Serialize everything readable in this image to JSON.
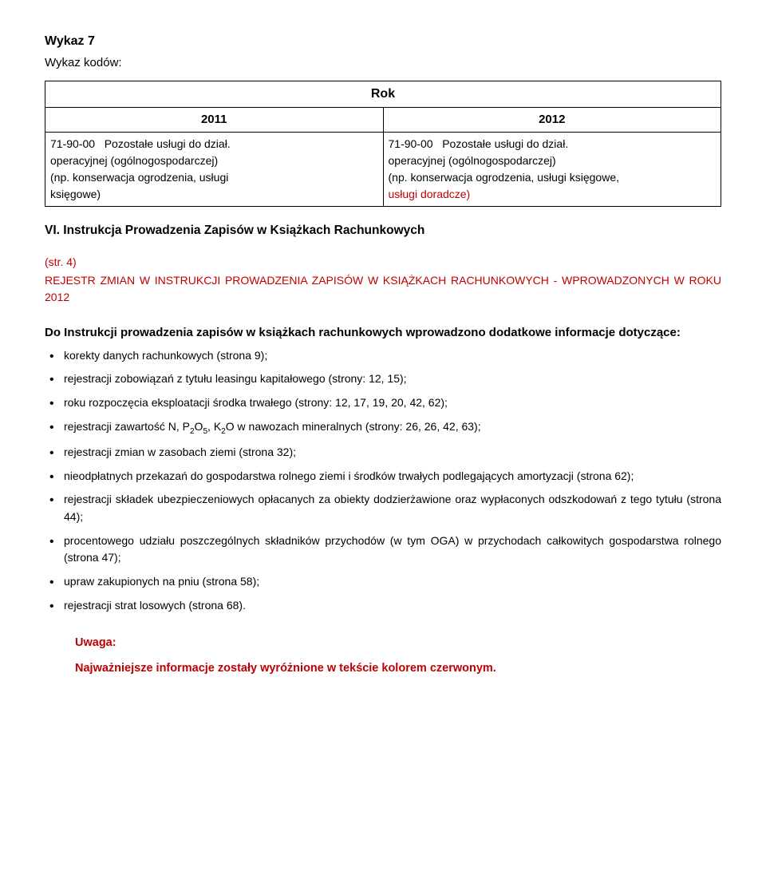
{
  "heading": "Wykaz 7",
  "subheading": "Wykaz kodów:",
  "table": {
    "rok_label": "Rok",
    "year_left": "2011",
    "year_right": "2012",
    "left_code": "71-90-00",
    "left_text1": "Pozostałe usługi do dział.",
    "left_text2": "operacyjnej (ogólnogospodarczej)",
    "left_text3": "(np. konserwacja ogrodzenia, usługi",
    "left_text4": "księgowe)",
    "right_code": "71-90-00",
    "right_text1": "Pozostałe usługi do dział.",
    "right_text2": "operacyjnej (ogólnogospodarczej)",
    "right_text3": "(np. konserwacja ogrodzenia, usługi księgowe,",
    "right_text4": "usługi doradcze)"
  },
  "section_vi": "VI.  Instrukcja Prowadzenia Zapisów w Książkach Rachunkowych",
  "str4": "(str. 4)",
  "registry_title": "REJESTR ZMIAN W INSTRUKCJI PROWADZENIA ZAPISÓW W KSIĄŻKACH RACHUNKOWYCH - WPROWADZONYCH W ROKU 2012",
  "intro_bold": "Do Instrukcji prowadzenia zapisów w książkach rachunkowych wprowadzono dodatkowe informacje dotyczące:",
  "bullets": {
    "b0": "korekty danych rachunkowych (strona 9);",
    "b1": "rejestracji zobowiązań z tytułu leasingu kapitałowego (strony: 12, 15);",
    "b2": "roku rozpoczęcia eksploatacji środka trwałego (strony: 12, 17, 19, 20, 42, 62);",
    "b3_pre": "rejestracji zawartość N, P",
    "b3_sub1": "2",
    "b3_mid1": "O",
    "b3_sub2": "5",
    "b3_mid2": ", K",
    "b3_sub3": "2",
    "b3_post": "O w nawozach mineralnych (strony: 26, 26, 42, 63);",
    "b4": "rejestracji zmian w zasobach ziemi (strona 32);",
    "b5": "nieodpłatnych przekazań do gospodarstwa rolnego ziemi i środków trwałych podlegających amortyzacji (strona 62);",
    "b6": "rejestracji składek ubezpieczeniowych opłacanych za obiekty dodzierżawione oraz wypłaconych odszkodowań z tego tytułu (strona 44);",
    "b7": "procentowego udziału poszczególnych składników przychodów (w tym OGA) w przychodach całkowitych gospodarstwa rolnego (strona 47);",
    "b8": "upraw zakupionych na pniu (strona 58);",
    "b9": "rejestracji strat losowych (strona 68)."
  },
  "uwaga": {
    "label": "Uwaga:",
    "text": "Najważniejsze informacje zostały wyróżnione w tekście kolorem czerwonym."
  },
  "colors": {
    "red": "#c00000",
    "black": "#000000",
    "bg": "#ffffff"
  }
}
